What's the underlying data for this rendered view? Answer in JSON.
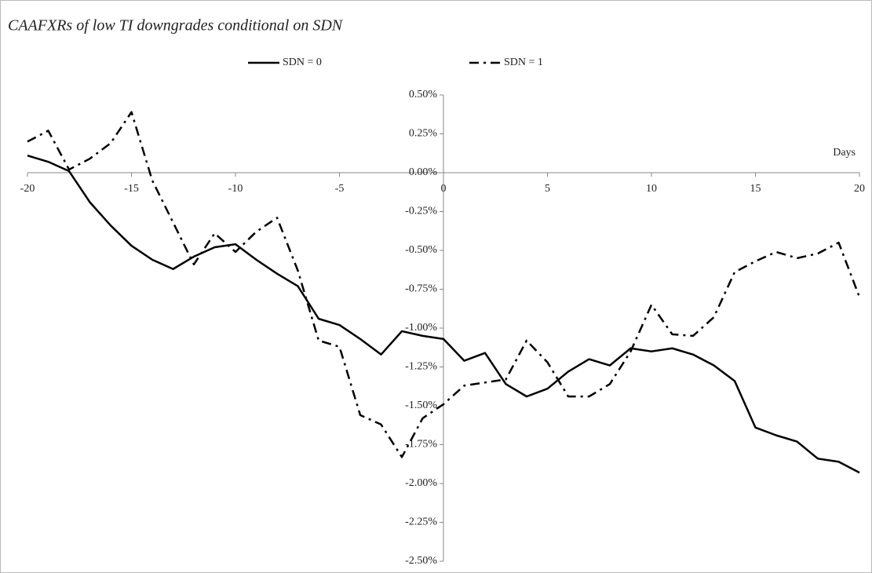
{
  "chart_data": {
    "type": "line",
    "title": "CAAFXRs of low TI downgrades conditional on SDN",
    "x_label": "Days",
    "legend": "top",
    "x": [
      -20,
      -19,
      -18,
      -17,
      -16,
      -15,
      -14,
      -13,
      -12,
      -11,
      -10,
      -9,
      -8,
      -7,
      -6,
      -5,
      -4,
      -3,
      -2,
      -1,
      0,
      1,
      2,
      3,
      4,
      5,
      6,
      7,
      8,
      9,
      10,
      11,
      12,
      13,
      14,
      15,
      16,
      17,
      18,
      19,
      20
    ],
    "series": [
      {
        "name": "SDN = 0",
        "color": "#000000",
        "style": "solid",
        "values": [
          0.11,
          0.07,
          0.01,
          -0.19,
          -0.34,
          -0.47,
          -0.56,
          -0.62,
          -0.54,
          -0.48,
          -0.46,
          -0.56,
          -0.65,
          -0.73,
          -0.94,
          -0.98,
          -1.07,
          -1.17,
          -1.02,
          -1.05,
          -1.07,
          -1.21,
          -1.16,
          -1.36,
          -1.44,
          -1.39,
          -1.28,
          -1.2,
          -1.24,
          -1.13,
          -1.15,
          -1.13,
          -1.17,
          -1.24,
          -1.34,
          -1.64,
          -1.69,
          -1.73,
          -1.84,
          -1.86,
          -1.93
        ]
      },
      {
        "name": "SDN = 1",
        "color": "#000000",
        "style": "dashdot",
        "values": [
          0.2,
          0.27,
          0.02,
          0.09,
          0.19,
          0.39,
          -0.05,
          -0.32,
          -0.59,
          -0.39,
          -0.51,
          -0.38,
          -0.29,
          -0.63,
          -1.08,
          -1.12,
          -1.56,
          -1.62,
          -1.83,
          -1.58,
          -1.49,
          -1.37,
          -1.35,
          -1.33,
          -1.08,
          -1.22,
          -1.44,
          -1.44,
          -1.36,
          -1.15,
          -0.85,
          -1.04,
          -1.05,
          -0.93,
          -0.64,
          -0.57,
          -0.51,
          -0.55,
          -0.52,
          -0.45,
          -0.8
        ]
      }
    ],
    "xlim": [
      -20,
      20
    ],
    "xticks": [
      -20,
      -15,
      -10,
      -5,
      0,
      5,
      10,
      15,
      20
    ],
    "ylim": [
      -2.5,
      0.5
    ],
    "yticks": [
      {
        "value": 0.5,
        "label": "0.50%"
      },
      {
        "value": 0.25,
        "label": "0.25%"
      },
      {
        "value": 0,
        "label": "0.00%"
      },
      {
        "value": -0.25,
        "label": "-0.25%"
      },
      {
        "value": -0.5,
        "label": "-0.50%"
      },
      {
        "value": -0.75,
        "label": "-0.75%"
      },
      {
        "value": -1,
        "label": "-1.00%"
      },
      {
        "value": -1.25,
        "label": "-1.25%"
      },
      {
        "value": -1.5,
        "label": "-1.50%"
      },
      {
        "value": -1.75,
        "label": "-1.75%"
      },
      {
        "value": -2,
        "label": "-2.00%"
      },
      {
        "value": -2.25,
        "label": "-2.25%"
      },
      {
        "value": -2.5,
        "label": "-2.50%"
      }
    ]
  }
}
